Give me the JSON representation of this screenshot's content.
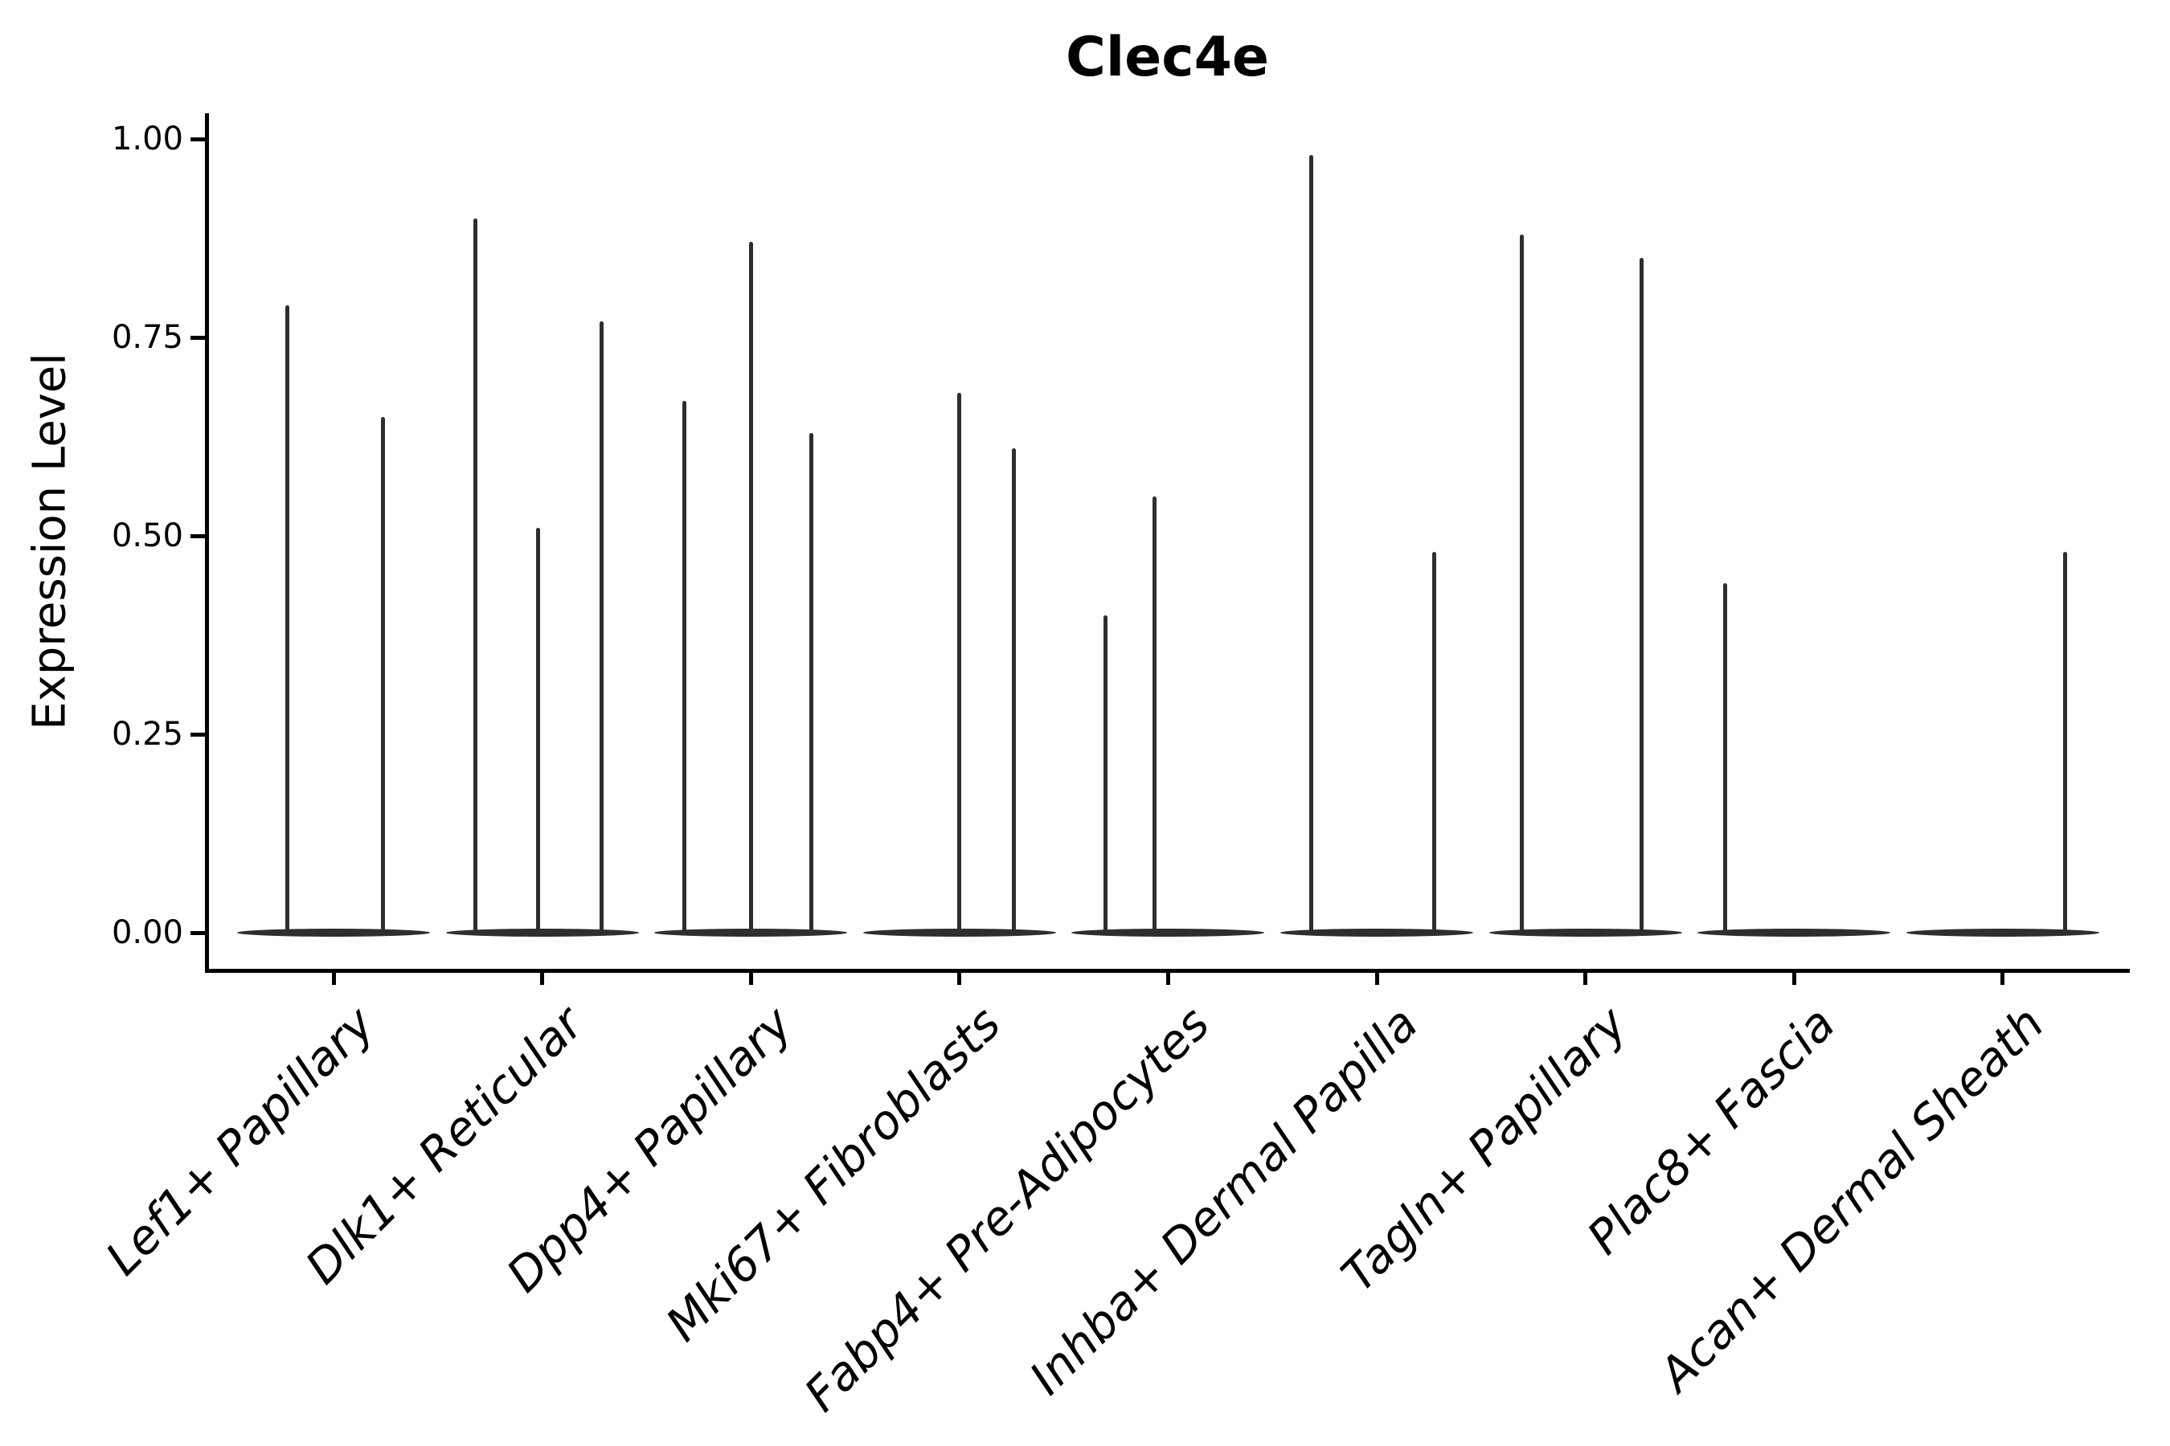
{
  "chart_data": {
    "type": "violin",
    "title": "Clec4e",
    "ylabel": "Expression Level",
    "xlabel": "",
    "ylim": [
      0,
      1.0
    ],
    "grid": false,
    "legend": null,
    "x_tick_rotation": 45,
    "style": {
      "spike_color": "#2e2e2e",
      "axis_color": "#000000",
      "background": "#ffffff"
    },
    "y_ticks": [
      {
        "value": 0.0,
        "label": "0.00"
      },
      {
        "value": 0.25,
        "label": "0.25"
      },
      {
        "value": 0.5,
        "label": "0.50"
      },
      {
        "value": 0.75,
        "label": "0.75"
      },
      {
        "value": 1.0,
        "label": "1.00"
      }
    ],
    "categories": [
      {
        "label": "Lef1+ Papillary",
        "spikes": [
          {
            "offset": -0.22,
            "value": 0.79
          },
          {
            "offset": 0.235,
            "value": 0.65
          }
        ]
      },
      {
        "label": "Dlk1+ Reticular",
        "spikes": [
          {
            "offset": -0.32,
            "value": 0.9
          },
          {
            "offset": -0.02,
            "value": 0.51
          },
          {
            "offset": 0.285,
            "value": 0.77
          }
        ]
      },
      {
        "label": "Dpp4+ Papillary",
        "spikes": [
          {
            "offset": -0.32,
            "value": 0.67
          },
          {
            "offset": 0.0,
            "value": 0.87
          },
          {
            "offset": 0.29,
            "value": 0.63
          }
        ]
      },
      {
        "label": "Mki67+ Fibroblasts",
        "spikes": [
          {
            "offset": 0.0,
            "value": 0.68
          },
          {
            "offset": 0.26,
            "value": 0.61
          }
        ]
      },
      {
        "label": "Fabp4+ Pre-Adipocytes",
        "spikes": [
          {
            "offset": -0.3,
            "value": 0.4
          },
          {
            "offset": -0.065,
            "value": 0.55
          }
        ]
      },
      {
        "label": "Inhba+ Dermal Papilla",
        "spikes": [
          {
            "offset": -0.315,
            "value": 0.98
          },
          {
            "offset": 0.275,
            "value": 0.48
          }
        ]
      },
      {
        "label": "Tagln+ Papillary",
        "spikes": [
          {
            "offset": -0.305,
            "value": 0.88
          },
          {
            "offset": 0.27,
            "value": 0.85
          }
        ]
      },
      {
        "label": "Plac8+ Fascia",
        "spikes": [
          {
            "offset": -0.33,
            "value": 0.44
          }
        ]
      },
      {
        "label": "Acan+ Dermal Sheath",
        "spikes": [
          {
            "offset": 0.3,
            "value": 0.48
          }
        ]
      }
    ]
  }
}
